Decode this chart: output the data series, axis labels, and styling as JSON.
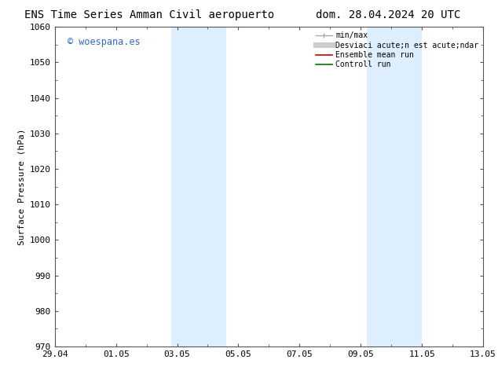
{
  "title_left": "ENS Time Series Amman Civil aeropuerto",
  "title_right": "dom. 28.04.2024 20 UTC",
  "ylabel": "Surface Pressure (hPa)",
  "ylim": [
    970,
    1060
  ],
  "yticks": [
    970,
    980,
    990,
    1000,
    1010,
    1020,
    1030,
    1040,
    1050,
    1060
  ],
  "xlim_start": 0,
  "xlim_end": 14,
  "xtick_positions": [
    0,
    2,
    4,
    6,
    8,
    10,
    12,
    14
  ],
  "xtick_labels": [
    "29.04",
    "01.05",
    "03.05",
    "05.05",
    "07.05",
    "09.05",
    "11.05",
    "13.05"
  ],
  "watermark_text": "© woespana.es",
  "watermark_color": "#3366cc",
  "shaded_bands": [
    {
      "xmin": 3.8,
      "xmax": 5.6
    },
    {
      "xmin": 10.2,
      "xmax": 12.0
    }
  ],
  "band_color": "#ddeeff",
  "background_color": "#ffffff",
  "grid_color": "#cccccc",
  "spine_color": "#555555",
  "title_fontsize": 10,
  "label_fontsize": 8,
  "tick_fontsize": 8,
  "legend_fontsize": 7,
  "minmax_color": "#aaaaaa",
  "std_color": "#cccccc",
  "ens_color": "#cc0000",
  "ctrl_color": "#007700",
  "legend_label_minmax": "min/max",
  "legend_label_std": "Desviaci acute;n est acute;ndar",
  "legend_label_ens": "Ensemble mean run",
  "legend_label_ctrl": "Controll run"
}
